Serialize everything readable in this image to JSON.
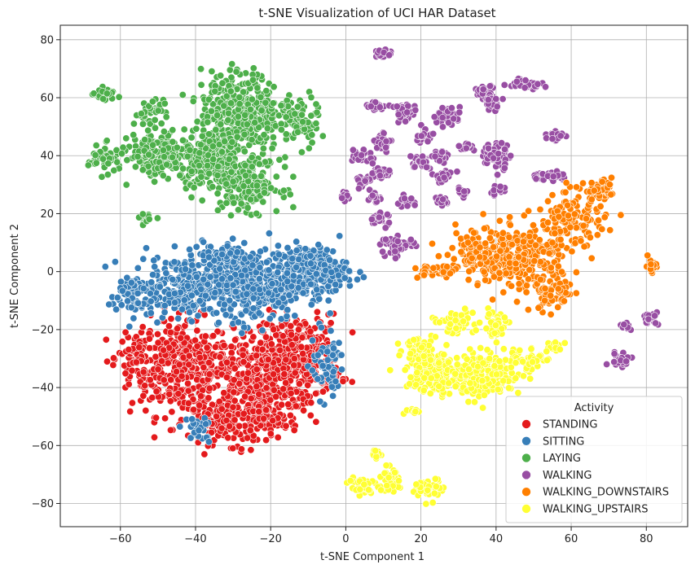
{
  "chart_data": {
    "type": "scatter",
    "title": "t-SNE Visualization of UCI HAR Dataset",
    "xlabel": "t-SNE Component 1",
    "ylabel": "t-SNE Component 2",
    "xlim": [
      -76,
      91
    ],
    "ylim": [
      -88,
      85
    ],
    "xticks": [
      -60,
      -40,
      -20,
      0,
      20,
      40,
      60,
      80
    ],
    "yticks": [
      -80,
      -60,
      -40,
      -20,
      0,
      20,
      40,
      60,
      80
    ],
    "grid": true,
    "legend": {
      "title": "Activity",
      "position": "lower-right"
    },
    "series": [
      {
        "name": "STANDING",
        "color": "#e41a1c",
        "clusters": [
          {
            "center": [
              -44,
              -33
            ],
            "spread": [
              9,
              11
            ],
            "count": 380
          },
          {
            "center": [
              -24,
              -38
            ],
            "spread": [
              9,
              11
            ],
            "count": 420
          },
          {
            "center": [
              -12,
              -30
            ],
            "spread": [
              7,
              10
            ],
            "count": 300
          },
          {
            "center": [
              -30,
              -52
            ],
            "spread": [
              8,
              5
            ],
            "count": 160
          },
          {
            "center": [
              -56,
              -30
            ],
            "spread": [
              3,
              5
            ],
            "count": 50
          }
        ]
      },
      {
        "name": "SITTING",
        "color": "#377eb8",
        "clusters": [
          {
            "center": [
              -42,
              -5
            ],
            "spread": [
              10,
              7
            ],
            "count": 300
          },
          {
            "center": [
              -24,
              -5
            ],
            "spread": [
              8,
              8
            ],
            "count": 300
          },
          {
            "center": [
              -10,
              0
            ],
            "spread": [
              7,
              6
            ],
            "count": 260
          },
          {
            "center": [
              -57,
              -8
            ],
            "spread": [
              4,
              5
            ],
            "count": 60
          },
          {
            "center": [
              -5,
              -32
            ],
            "spread": [
              3,
              8
            ],
            "count": 60
          },
          {
            "center": [
              -40,
              -55
            ],
            "spread": [
              3,
              3
            ],
            "count": 25
          },
          {
            "center": [
              -32,
              6
            ],
            "spread": [
              4,
              3
            ],
            "count": 60
          }
        ]
      },
      {
        "name": "LAYING",
        "color": "#4daf4a",
        "clusters": [
          {
            "center": [
              -28,
              55
            ],
            "spread": [
              7,
              9
            ],
            "count": 380
          },
          {
            "center": [
              -35,
              38
            ],
            "spread": [
              6,
              7
            ],
            "count": 260
          },
          {
            "center": [
              -25,
              30
            ],
            "spread": [
              5,
              6
            ],
            "count": 160
          },
          {
            "center": [
              -50,
              40
            ],
            "spread": [
              5,
              5
            ],
            "count": 180
          },
          {
            "center": [
              -64,
              39
            ],
            "spread": [
              3,
              3
            ],
            "count": 60
          },
          {
            "center": [
              -13,
              52
            ],
            "spread": [
              4,
              6
            ],
            "count": 80
          },
          {
            "center": [
              -52,
              55
            ],
            "spread": [
              3,
              3
            ],
            "count": 40
          },
          {
            "center": [
              -64,
              61
            ],
            "spread": [
              2,
              1.5
            ],
            "count": 25
          },
          {
            "center": [
              -53,
              18
            ],
            "spread": [
              1.5,
              1.2
            ],
            "count": 15
          }
        ]
      },
      {
        "name": "WALKING",
        "color": "#984ea3",
        "clusters": [
          {
            "center": [
              10,
              75
            ],
            "spread": [
              1.2,
              1.0
            ],
            "count": 30
          },
          {
            "center": [
              37,
              62
            ],
            "spread": [
              2,
              1.5
            ],
            "count": 30
          },
          {
            "center": [
              48,
              65
            ],
            "spread": [
              3,
              1.2
            ],
            "count": 40
          },
          {
            "center": [
              8,
              57
            ],
            "spread": [
              2,
              1.0
            ],
            "count": 20
          },
          {
            "center": [
              16,
              55
            ],
            "spread": [
              2,
              2
            ],
            "count": 30
          },
          {
            "center": [
              27,
              54
            ],
            "spread": [
              2.5,
              2
            ],
            "count": 40
          },
          {
            "center": [
              39,
              58
            ],
            "spread": [
              1.5,
              1.5
            ],
            "count": 20
          },
          {
            "center": [
              10,
              45
            ],
            "spread": [
              1.5,
              2
            ],
            "count": 30
          },
          {
            "center": [
              4,
              40
            ],
            "spread": [
              2,
              1.5
            ],
            "count": 25
          },
          {
            "center": [
              21,
              47
            ],
            "spread": [
              1.5,
              2
            ],
            "count": 20
          },
          {
            "center": [
              32,
              43
            ],
            "spread": [
              1.5,
              1.2
            ],
            "count": 15
          },
          {
            "center": [
              40,
              40
            ],
            "spread": [
              2.5,
              3
            ],
            "count": 60
          },
          {
            "center": [
              56,
              47
            ],
            "spread": [
              1.5,
              1.5
            ],
            "count": 20
          },
          {
            "center": [
              20,
              38
            ],
            "spread": [
              2,
              1.5
            ],
            "count": 25
          },
          {
            "center": [
              25,
              40
            ],
            "spread": [
              1.5,
              1.5
            ],
            "count": 20
          },
          {
            "center": [
              9,
              34
            ],
            "spread": [
              2,
              1.5
            ],
            "count": 30
          },
          {
            "center": [
              4,
              31
            ],
            "spread": [
              1.5,
              1.5
            ],
            "count": 15
          },
          {
            "center": [
              26,
              33
            ],
            "spread": [
              2,
              1.5
            ],
            "count": 25
          },
          {
            "center": [
              54,
              33
            ],
            "spread": [
              4,
              1
            ],
            "count": 30
          },
          {
            "center": [
              -1,
              26
            ],
            "spread": [
              1.2,
              1.0
            ],
            "count": 15
          },
          {
            "center": [
              8,
              25
            ],
            "spread": [
              1.5,
              1.5
            ],
            "count": 15
          },
          {
            "center": [
              16,
              24
            ],
            "spread": [
              1.5,
              1.2
            ],
            "count": 15
          },
          {
            "center": [
              25,
              24
            ],
            "spread": [
              1.5,
              1.2
            ],
            "count": 15
          },
          {
            "center": [
              31,
              27
            ],
            "spread": [
              1.2,
              1.0
            ],
            "count": 10
          },
          {
            "center": [
              40,
              28
            ],
            "spread": [
              1.5,
              1.0
            ],
            "count": 10
          },
          {
            "center": [
              9,
              18
            ],
            "spread": [
              2,
              1.5
            ],
            "count": 25
          },
          {
            "center": [
              14,
              9
            ],
            "spread": [
              3,
              2
            ],
            "count": 50
          },
          {
            "center": [
              81,
              -16
            ],
            "spread": [
              1.5,
              1.5
            ],
            "count": 20
          },
          {
            "center": [
              75,
              -19
            ],
            "spread": [
              1,
              1
            ],
            "count": 10
          },
          {
            "center": [
              73,
              -30
            ],
            "spread": [
              2,
              1.5
            ],
            "count": 30
          }
        ]
      },
      {
        "name": "WALKING_DOWNSTAIRS",
        "color": "#ff7f00",
        "clusters": [
          {
            "center": [
              45,
              5
            ],
            "spread": [
              10,
              7
            ],
            "count": 330
          },
          {
            "center": [
              60,
              18
            ],
            "spread": [
              6,
              6
            ],
            "count": 130
          },
          {
            "center": [
              68,
              28
            ],
            "spread": [
              3,
              2
            ],
            "count": 50
          },
          {
            "center": [
              55,
              -8
            ],
            "spread": [
              4,
              4
            ],
            "count": 60
          },
          {
            "center": [
              24,
              0
            ],
            "spread": [
              4,
              1.5
            ],
            "count": 40
          },
          {
            "center": [
              81,
              2
            ],
            "spread": [
              1.2,
              2
            ],
            "count": 15
          },
          {
            "center": [
              34,
              8
            ],
            "spread": [
              2,
              3
            ],
            "count": 40
          }
        ]
      },
      {
        "name": "WALKING_UPSTAIRS",
        "color": "#ffff33",
        "clusters": [
          {
            "center": [
              25,
              -35
            ],
            "spread": [
              6,
              5
            ],
            "count": 160
          },
          {
            "center": [
              38,
              -36
            ],
            "spread": [
              6,
              5
            ],
            "count": 160
          },
          {
            "center": [
              28,
              -18
            ],
            "spread": [
              4,
              3
            ],
            "count": 50
          },
          {
            "center": [
              40,
              -18
            ],
            "spread": [
              2.5,
              3
            ],
            "count": 40
          },
          {
            "center": [
              20,
              -26
            ],
            "spread": [
              3,
              3
            ],
            "count": 40
          },
          {
            "center": [
              48,
              -30
            ],
            "spread": [
              3,
              3
            ],
            "count": 40
          },
          {
            "center": [
              55,
              -26
            ],
            "spread": [
              1.5,
              1.5
            ],
            "count": 20
          },
          {
            "center": [
              4,
              -74
            ],
            "spread": [
              2.5,
              2.5
            ],
            "count": 40
          },
          {
            "center": [
              12,
              -72
            ],
            "spread": [
              2.5,
              3
            ],
            "count": 40
          },
          {
            "center": [
              22,
              -75
            ],
            "spread": [
              2.5,
              2.5
            ],
            "count": 40
          },
          {
            "center": [
              9,
              -63
            ],
            "spread": [
              1.5,
              1.5
            ],
            "count": 15
          },
          {
            "center": [
              18,
              -48
            ],
            "spread": [
              1.5,
              1
            ],
            "count": 10
          }
        ]
      }
    ]
  }
}
